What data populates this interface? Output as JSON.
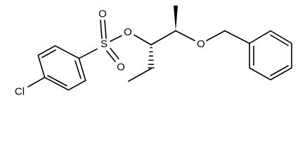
{
  "atoms": [
    {
      "label": "Cl"
    },
    {
      "label": "S"
    },
    {
      "label": "O"
    },
    {
      "label": "O"
    },
    {
      "label": "O"
    },
    {
      "label": "O"
    }
  ]
}
